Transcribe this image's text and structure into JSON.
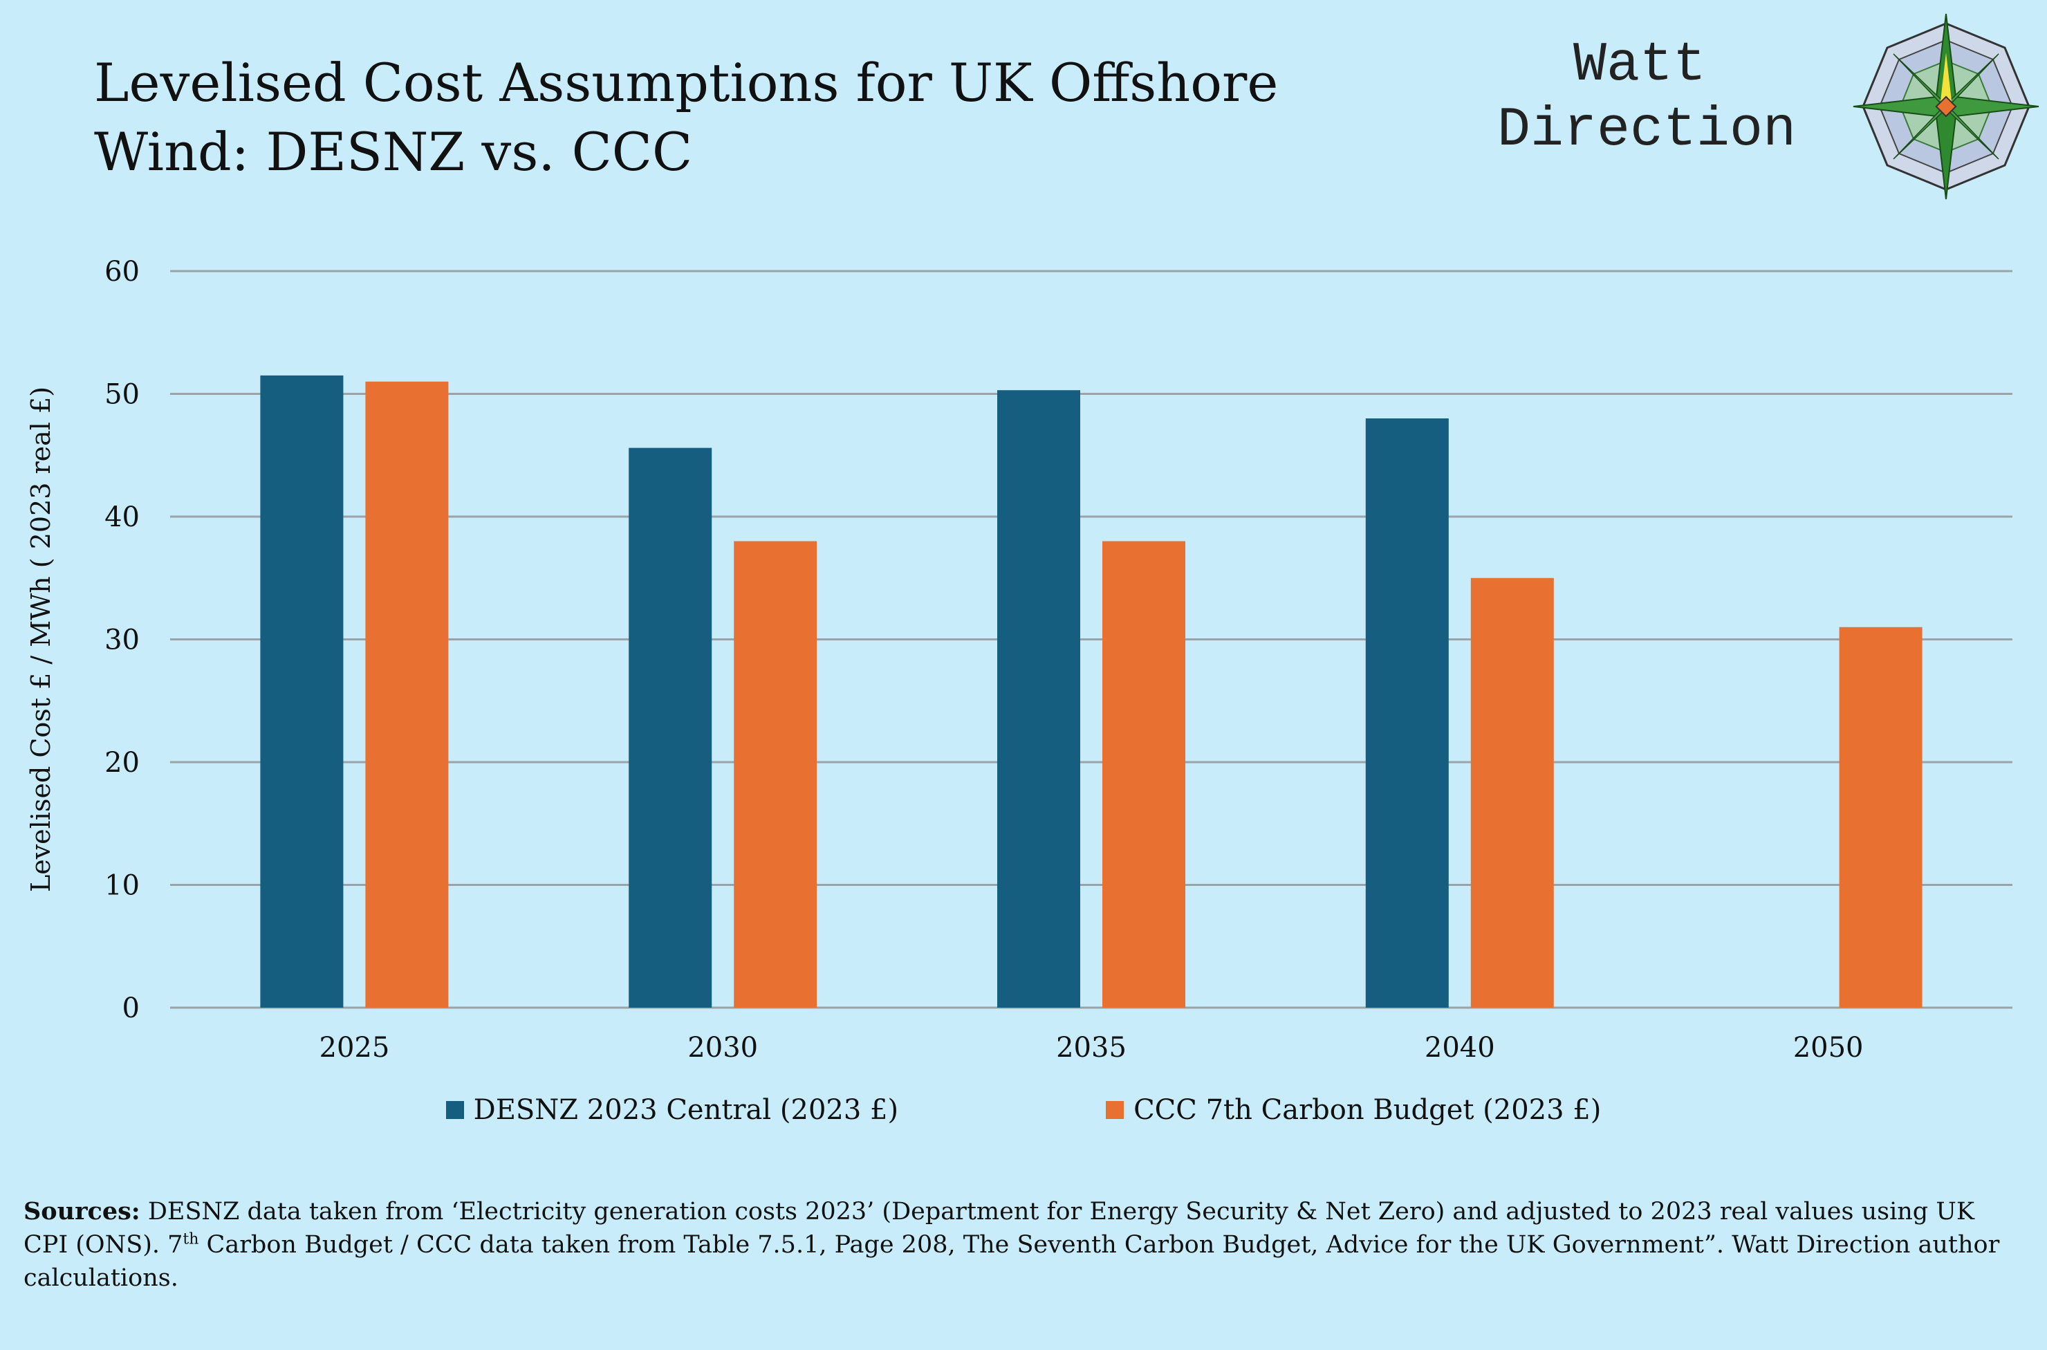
{
  "title": {
    "line1": "Levelised Cost Assumptions for UK Offshore",
    "line2": "Wind: DESNZ vs. CCC"
  },
  "brand": {
    "line1": "Watt",
    "line2": "Direction"
  },
  "sources": {
    "label": "Sources:",
    "text1": " DESNZ data taken from ‘Electricity generation costs 2023’ (Department for Energy Security & Net Zero) and adjusted to 2023 real values using UK CPI (ONS).  7",
    "sup": "th",
    "text2": " Carbon Budget / CCC data taken from Table 7.5.1, Page 208, The Seventh Carbon Budget, Advice for the UK Government”. Watt Direction author calculations."
  },
  "chart_data": {
    "type": "bar",
    "ylabel": "Levelised Cost £ / MWh ( 2023 real £)",
    "xlabel": "",
    "ylim": [
      0,
      60
    ],
    "yticks": [
      0,
      10,
      20,
      30,
      40,
      50,
      60
    ],
    "grid": true,
    "legend_position": "bottom",
    "categories": [
      "2025",
      "2030",
      "2035",
      "2040",
      "2050"
    ],
    "series": [
      {
        "name": "DESNZ 2023 Central (2023 £)",
        "color": "#155e80",
        "values": [
          51.5,
          45.6,
          50.3,
          48.0,
          null
        ]
      },
      {
        "name": "CCC 7th Carbon Budget (2023 £)",
        "color": "#e87132",
        "values": [
          51.0,
          38.0,
          38.0,
          35.0,
          31.0
        ]
      }
    ]
  }
}
